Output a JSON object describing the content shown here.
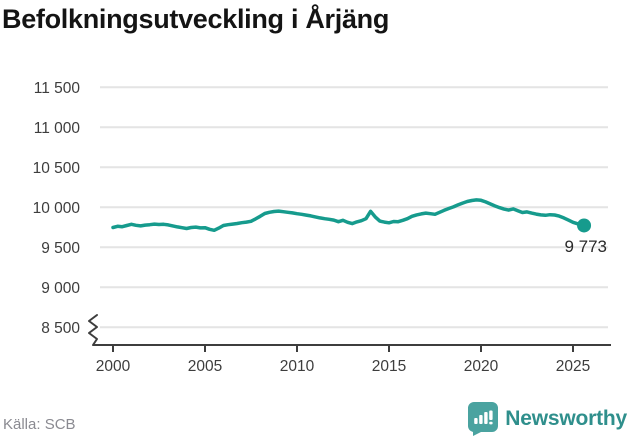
{
  "header": {
    "title": "Befolkningsutveckling i Årjäng"
  },
  "footer": {
    "source": "Källa: SCB",
    "brand": "Newsworthy"
  },
  "colors": {
    "line": "#169b8d",
    "grid": "#e4e4e4",
    "axis": "#3d3d3d",
    "tick_text": "#3d3d3d",
    "brand_icon": "#4aa3a0",
    "brand_text": "#2f8f8c"
  },
  "chart_data": {
    "type": "line",
    "title": "Befolkningsutveckling i Årjäng",
    "xlabel": "",
    "ylabel": "",
    "xlim": [
      2000,
      2025
    ],
    "ylim": [
      8500,
      11500
    ],
    "grid": "horizontal",
    "legend": "none",
    "axis_break_below": 8500,
    "x_ticks": [
      2000,
      2005,
      2010,
      2015,
      2020,
      2025
    ],
    "y_ticks": [
      {
        "value": 11500,
        "label": "11 500"
      },
      {
        "value": 11000,
        "label": "11 000"
      },
      {
        "value": 10500,
        "label": "10 500"
      },
      {
        "value": 10000,
        "label": "10 000"
      },
      {
        "value": 9500,
        "label": "9 500"
      },
      {
        "value": 9000,
        "label": "9 000"
      },
      {
        "value": 8500,
        "label": "8 500"
      }
    ],
    "end_label": "9 773",
    "end_value": 9773,
    "series": [
      {
        "name": "Befolkning i Årjäng",
        "points": [
          [
            2000.0,
            9748
          ],
          [
            2000.25,
            9762
          ],
          [
            2000.5,
            9758
          ],
          [
            2000.75,
            9772
          ],
          [
            2001.0,
            9788
          ],
          [
            2001.25,
            9775
          ],
          [
            2001.5,
            9768
          ],
          [
            2001.75,
            9778
          ],
          [
            2002.0,
            9782
          ],
          [
            2002.25,
            9790
          ],
          [
            2002.5,
            9785
          ],
          [
            2002.75,
            9788
          ],
          [
            2003.0,
            9780
          ],
          [
            2003.25,
            9768
          ],
          [
            2003.5,
            9755
          ],
          [
            2003.75,
            9745
          ],
          [
            2004.0,
            9735
          ],
          [
            2004.25,
            9748
          ],
          [
            2004.5,
            9752
          ],
          [
            2004.75,
            9742
          ],
          [
            2005.0,
            9745
          ],
          [
            2005.25,
            9725
          ],
          [
            2005.5,
            9712
          ],
          [
            2005.75,
            9740
          ],
          [
            2006.0,
            9772
          ],
          [
            2006.25,
            9782
          ],
          [
            2006.5,
            9790
          ],
          [
            2006.75,
            9798
          ],
          [
            2007.0,
            9808
          ],
          [
            2007.25,
            9815
          ],
          [
            2007.5,
            9825
          ],
          [
            2007.75,
            9855
          ],
          [
            2008.0,
            9888
          ],
          [
            2008.25,
            9922
          ],
          [
            2008.5,
            9938
          ],
          [
            2008.75,
            9948
          ],
          [
            2009.0,
            9952
          ],
          [
            2009.25,
            9945
          ],
          [
            2009.5,
            9938
          ],
          [
            2009.75,
            9930
          ],
          [
            2010.0,
            9920
          ],
          [
            2010.25,
            9912
          ],
          [
            2010.5,
            9902
          ],
          [
            2010.75,
            9892
          ],
          [
            2011.0,
            9880
          ],
          [
            2011.25,
            9868
          ],
          [
            2011.5,
            9858
          ],
          [
            2011.75,
            9850
          ],
          [
            2012.0,
            9840
          ],
          [
            2012.25,
            9820
          ],
          [
            2012.5,
            9838
          ],
          [
            2012.75,
            9812
          ],
          [
            2013.0,
            9796
          ],
          [
            2013.25,
            9818
          ],
          [
            2013.5,
            9832
          ],
          [
            2013.75,
            9858
          ],
          [
            2014.0,
            9950
          ],
          [
            2014.25,
            9880
          ],
          [
            2014.5,
            9828
          ],
          [
            2014.75,
            9815
          ],
          [
            2015.0,
            9806
          ],
          [
            2015.25,
            9822
          ],
          [
            2015.5,
            9820
          ],
          [
            2015.75,
            9838
          ],
          [
            2016.0,
            9858
          ],
          [
            2016.25,
            9888
          ],
          [
            2016.5,
            9905
          ],
          [
            2016.75,
            9918
          ],
          [
            2017.0,
            9928
          ],
          [
            2017.25,
            9920
          ],
          [
            2017.5,
            9912
          ],
          [
            2017.75,
            9938
          ],
          [
            2018.0,
            9962
          ],
          [
            2018.25,
            9985
          ],
          [
            2018.5,
            10005
          ],
          [
            2018.75,
            10030
          ],
          [
            2019.0,
            10052
          ],
          [
            2019.25,
            10072
          ],
          [
            2019.5,
            10085
          ],
          [
            2019.75,
            10092
          ],
          [
            2020.0,
            10088
          ],
          [
            2020.25,
            10068
          ],
          [
            2020.5,
            10042
          ],
          [
            2020.75,
            10018
          ],
          [
            2021.0,
            9996
          ],
          [
            2021.25,
            9978
          ],
          [
            2021.5,
            9965
          ],
          [
            2021.75,
            9980
          ],
          [
            2022.0,
            9958
          ],
          [
            2022.25,
            9935
          ],
          [
            2022.5,
            9942
          ],
          [
            2022.75,
            9928
          ],
          [
            2023.0,
            9915
          ],
          [
            2023.25,
            9905
          ],
          [
            2023.5,
            9900
          ],
          [
            2023.75,
            9908
          ],
          [
            2024.0,
            9904
          ],
          [
            2024.25,
            9890
          ],
          [
            2024.5,
            9868
          ],
          [
            2024.75,
            9840
          ],
          [
            2025.0,
            9812
          ],
          [
            2025.3,
            9790
          ],
          [
            2025.6,
            9773
          ]
        ]
      }
    ]
  }
}
